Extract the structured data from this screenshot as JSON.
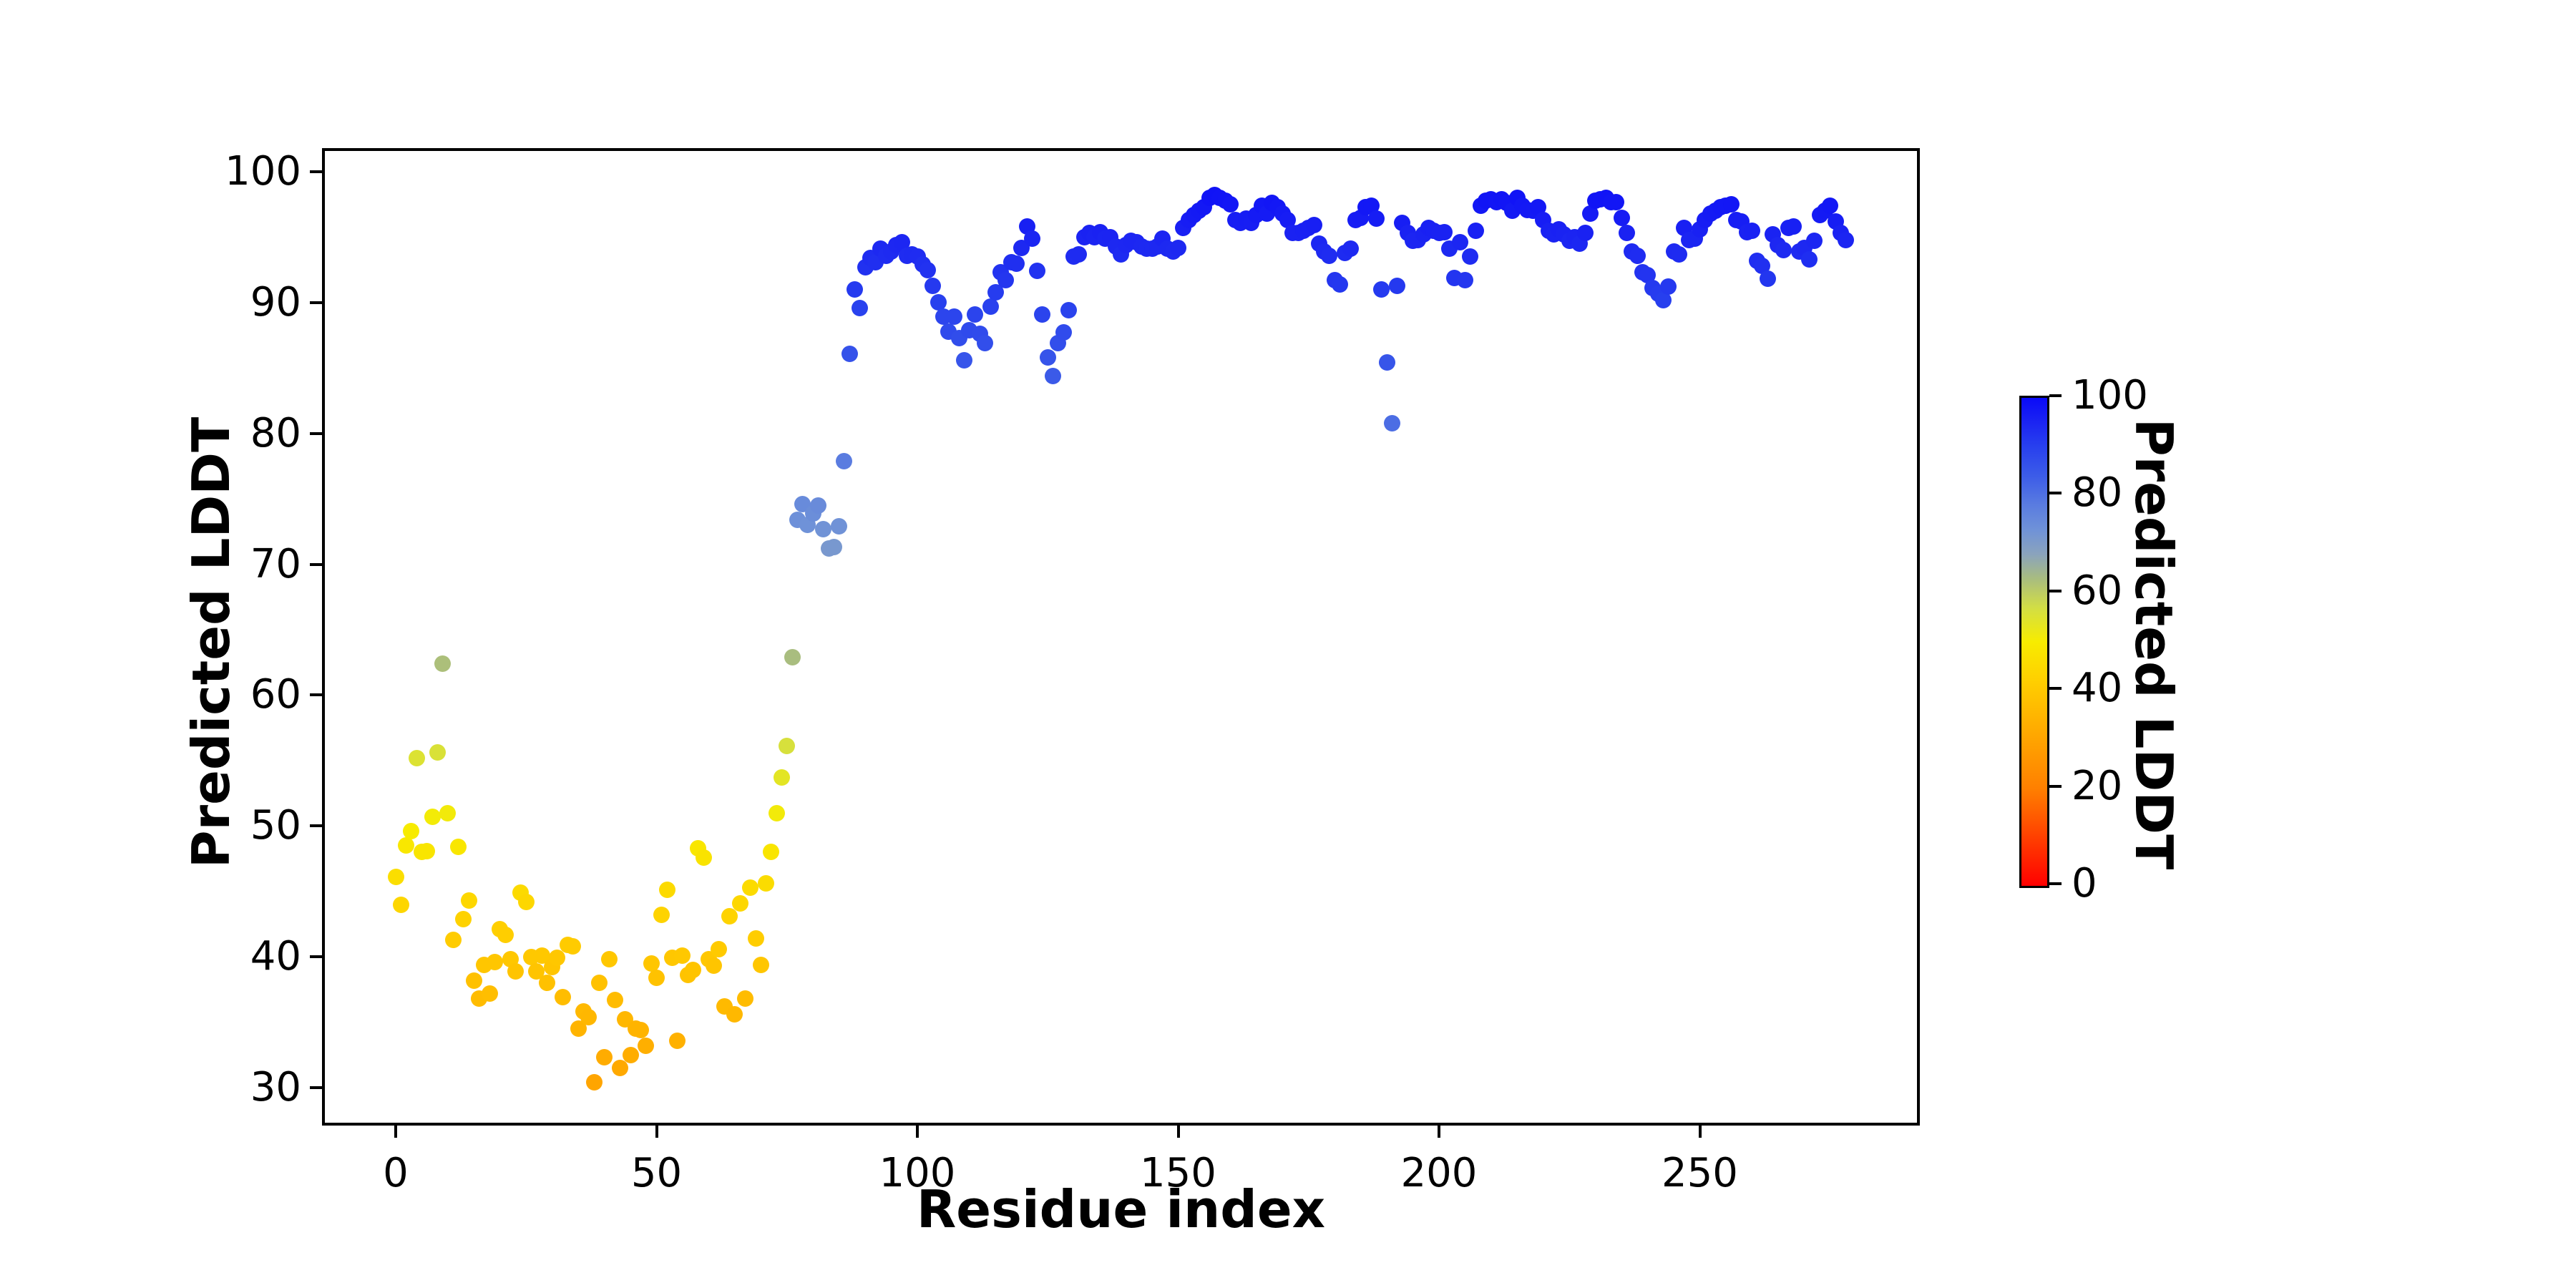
{
  "figure": {
    "xlabel": "Residue index",
    "ylabel": "Predicted LDDT",
    "x_ticks": [
      0,
      50,
      100,
      150,
      200,
      250
    ],
    "y_ticks": [
      30,
      40,
      50,
      60,
      70,
      80,
      90,
      100
    ],
    "colorbar": {
      "label": "Predicted LDDT",
      "ticks": [
        0,
        20,
        40,
        60,
        80,
        100
      ],
      "min": 0,
      "max": 100
    },
    "background_color": "#ffffff",
    "axis_color": "#000000"
  },
  "chart_data": {
    "type": "scatter",
    "title": "",
    "xlabel": "Residue index",
    "ylabel": "Predicted LDDT",
    "xlim": [
      -14,
      292
    ],
    "ylim": [
      27,
      102
    ],
    "grid": false,
    "legend_position": "colorbar-right",
    "marker": "circle",
    "x_start": 0,
    "x_step": 1,
    "x_label_note": "x value = residue index = array position",
    "y_values": [
      46.1,
      44.0,
      48.5,
      49.6,
      55.2,
      48.0,
      48.1,
      50.7,
      55.6,
      62.4,
      51.0,
      41.3,
      48.4,
      42.9,
      44.3,
      38.2,
      36.8,
      39.4,
      37.2,
      39.6,
      42.1,
      41.7,
      39.8,
      38.9,
      44.9,
      44.2,
      40.0,
      38.9,
      40.1,
      38.0,
      39.2,
      39.9,
      36.9,
      40.9,
      40.8,
      34.5,
      35.8,
      35.4,
      30.4,
      38.0,
      32.3,
      39.8,
      36.7,
      31.5,
      35.2,
      32.5,
      34.5,
      34.4,
      33.2,
      39.5,
      38.4,
      43.2,
      45.1,
      39.9,
      33.6,
      40.1,
      38.6,
      39.0,
      48.3,
      47.6,
      39.8,
      39.3,
      40.6,
      36.2,
      43.1,
      35.6,
      44.1,
      36.8,
      45.3,
      41.4,
      39.4,
      45.6,
      48.0,
      51.0,
      53.7,
      56.1,
      62.9,
      73.4,
      74.6,
      73.0,
      73.9,
      74.5,
      72.7,
      71.2,
      71.3,
      72.9,
      77.9,
      86.1,
      91.0,
      89.6,
      92.7,
      93.4,
      93.1,
      94.1,
      93.6,
      93.9,
      94.4,
      94.6,
      93.6,
      93.7,
      93.5,
      92.9,
      92.5,
      91.3,
      90.0,
      88.9,
      87.8,
      88.9,
      87.3,
      85.6,
      87.9,
      89.1,
      87.6,
      86.9,
      89.7,
      90.8,
      92.3,
      91.7,
      93.1,
      93.0,
      94.2,
      95.8,
      94.9,
      92.4,
      89.1,
      85.8,
      84.4,
      86.9,
      87.7,
      89.4,
      93.5,
      93.7,
      95.0,
      95.3,
      95.0,
      95.4,
      94.9,
      95.0,
      94.3,
      93.7,
      94.4,
      94.7,
      94.6,
      94.3,
      94.1,
      94.1,
      94.3,
      94.9,
      94.1,
      93.9,
      94.2,
      95.7,
      96.3,
      96.7,
      97.0,
      97.3,
      98.0,
      98.2,
      98.0,
      97.8,
      97.5,
      96.3,
      96.1,
      96.4,
      96.1,
      96.7,
      97.4,
      96.8,
      97.6,
      97.3,
      96.8,
      96.3,
      95.3,
      95.3,
      95.5,
      95.7,
      95.9,
      94.5,
      93.9,
      93.6,
      91.7,
      91.4,
      93.8,
      94.1,
      96.3,
      96.5,
      97.3,
      97.4,
      96.4,
      91.0,
      85.4,
      80.8,
      91.3,
      96.1,
      95.3,
      94.7,
      94.8,
      95.2,
      95.7,
      95.5,
      95.3,
      95.4,
      94.1,
      91.9,
      94.6,
      91.7,
      93.5,
      95.5,
      97.4,
      97.8,
      97.9,
      97.7,
      97.9,
      97.6,
      97.0,
      98.0,
      97.4,
      97.1,
      97.0,
      97.3,
      96.3,
      95.5,
      95.2,
      95.6,
      95.2,
      94.7,
      95.0,
      94.5,
      95.3,
      96.8,
      97.8,
      97.9,
      98.0,
      97.7,
      97.7,
      96.5,
      95.3,
      93.9,
      93.6,
      92.3,
      92.1,
      91.1,
      90.7,
      90.2,
      91.2,
      93.9,
      93.7,
      95.7,
      94.8,
      94.9,
      95.6,
      96.3,
      96.8,
      97.0,
      97.3,
      97.4,
      97.5,
      96.3,
      96.2,
      95.4,
      95.5,
      93.2,
      92.8,
      91.8,
      95.2,
      94.4,
      94.0,
      95.7,
      95.8,
      93.9,
      94.2,
      93.3,
      94.7,
      96.7,
      97.0,
      97.4,
      96.2,
      95.3,
      94.8
    ],
    "colormap_note": "points colored by y value (Predicted LDDT)",
    "colormap_stops": [
      [
        0,
        "#ff0000"
      ],
      [
        20,
        "#ff8000"
      ],
      [
        42,
        "#ffcf00"
      ],
      [
        50,
        "#f7ec00"
      ],
      [
        57,
        "#d2de45"
      ],
      [
        63,
        "#a8bc80"
      ],
      [
        68,
        "#8aa3bd"
      ],
      [
        73,
        "#6f92d8"
      ],
      [
        78,
        "#5a7ce0"
      ],
      [
        84,
        "#3c5ce8"
      ],
      [
        90,
        "#2840ee"
      ],
      [
        95,
        "#1b24f2"
      ],
      [
        100,
        "#0a0af8"
      ]
    ]
  }
}
